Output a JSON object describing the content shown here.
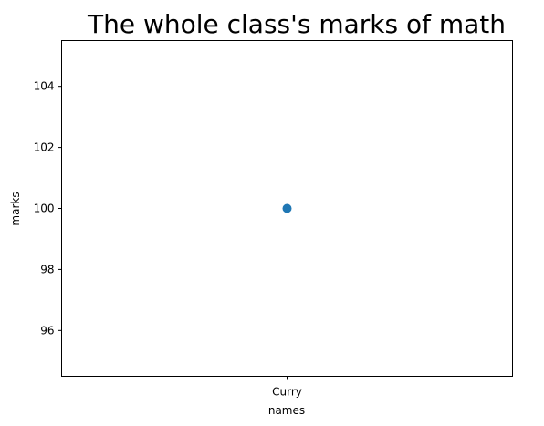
{
  "chart_data": {
    "type": "scatter",
    "title": "The whole class's marks of math",
    "xlabel": "names",
    "ylabel": "marks",
    "categories": [
      "Curry"
    ],
    "series": [
      {
        "values": [
          100
        ]
      }
    ],
    "ylim": [
      94.5,
      105.5
    ],
    "yticks": [
      96,
      98,
      100,
      102,
      104
    ],
    "grid": false,
    "marker_color": "#1f77b4"
  }
}
